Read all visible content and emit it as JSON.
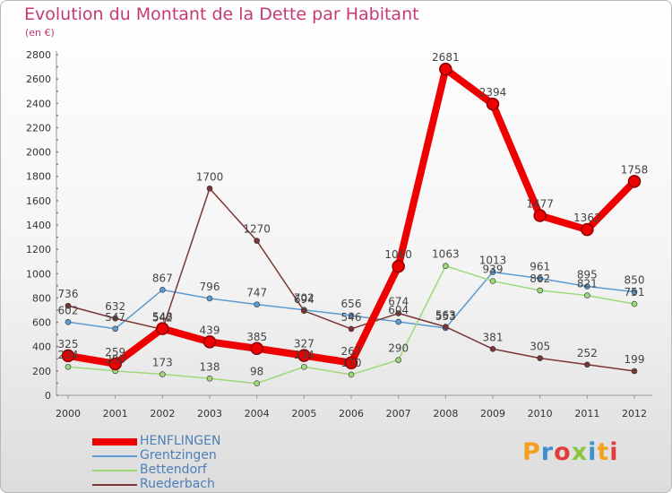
{
  "header": {
    "title": "Evolution du Montant de la Dette par Habitant",
    "subtitle": "(en €)"
  },
  "logo": {
    "text": "Proxiti",
    "letter_colors": [
      "#f4a21d",
      "#3f8fd2",
      "#e23c3c",
      "#8cc43f",
      "#3f8fd2",
      "#f4a21d",
      "#e23c3c"
    ]
  },
  "chart_data": {
    "type": "line",
    "title": "Evolution du Montant de la Dette par Habitant",
    "subtitle": "(en €)",
    "x": [
      "2000",
      "2001",
      "2002",
      "2003",
      "2004",
      "2005",
      "2006",
      "2007",
      "2008",
      "2009",
      "2010",
      "2011",
      "2012"
    ],
    "ylim": [
      0,
      2800
    ],
    "yticks": [
      0,
      200,
      400,
      600,
      800,
      1000,
      1200,
      1400,
      1600,
      1800,
      2000,
      2200,
      2400,
      2600,
      2800
    ],
    "grid": false,
    "legend_position": "bottom-left",
    "series": [
      {
        "name": "HENFLINGEN",
        "color": "#ee0000",
        "values": [
          325,
          259,
          548,
          439,
          385,
          327,
          267,
          1060,
          2681,
          2394,
          1477,
          1362,
          1758
        ]
      },
      {
        "name": "Grentzingen",
        "color": "#5c9bd1",
        "values": [
          602,
          547,
          867,
          796,
          747,
          702,
          656,
          604,
          553,
          1013,
          961,
          895,
          850
        ]
      },
      {
        "name": "Bettendorf",
        "color": "#9ed979",
        "values": [
          234,
          200,
          173,
          138,
          98,
          234,
          170,
          290,
          1063,
          939,
          862,
          821,
          751
        ]
      },
      {
        "name": "Ruederbach",
        "color": "#7a3534",
        "values": [
          736,
          632,
          542,
          1700,
          1270,
          694,
          546,
          674,
          563,
          381,
          305,
          252,
          199
        ]
      }
    ]
  }
}
